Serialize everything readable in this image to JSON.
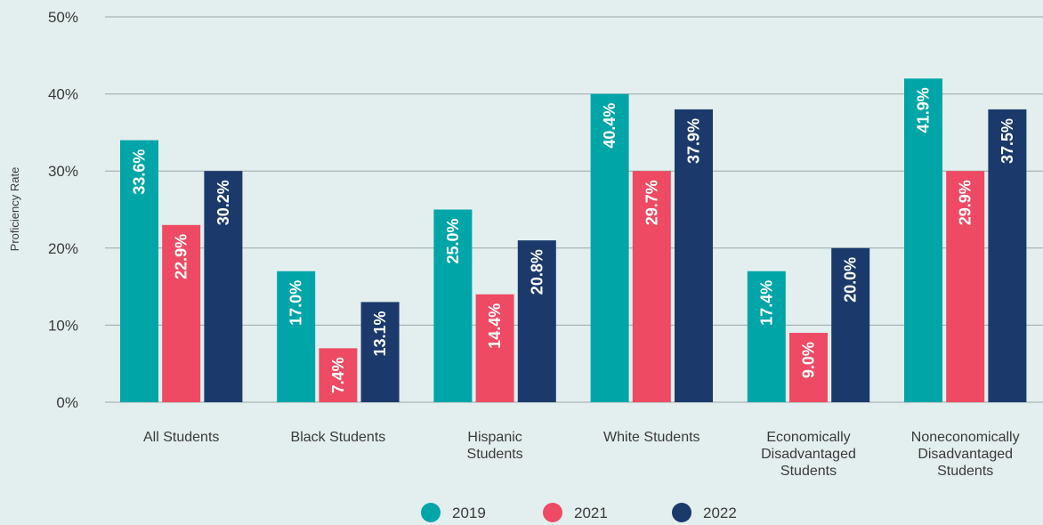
{
  "chart_data": {
    "type": "bar",
    "ylabel": "Proficiency Rate",
    "ylim": [
      0,
      50
    ],
    "yticks": [
      "0%",
      "10%",
      "20%",
      "30%",
      "40%",
      "50%"
    ],
    "grid": true,
    "legend_position": "bottom",
    "categories": [
      [
        "All Students"
      ],
      [
        "Black Students"
      ],
      [
        "Hispanic",
        "Students"
      ],
      [
        "White Students"
      ],
      [
        "Economically",
        "Disadvantaged",
        "Students"
      ],
      [
        "Noneconomically",
        "Disadvantaged",
        "Students"
      ]
    ],
    "series": [
      {
        "name": "2019",
        "color": "#00a5a8",
        "values": [
          34,
          17,
          25,
          40,
          17,
          42
        ],
        "labels": [
          "33.6%",
          "17.0%",
          "25.0%",
          "40.4%",
          "17.4%",
          "41.9%"
        ]
      },
      {
        "name": "2021",
        "color": "#ee4a63",
        "values": [
          23,
          7,
          14,
          30,
          9,
          30
        ],
        "labels": [
          "22.9%",
          "7.4%",
          "14.4%",
          "29.7%",
          "9.0%",
          "29.9%"
        ]
      },
      {
        "name": "2022",
        "color": "#1b3a6b",
        "values": [
          30,
          13,
          21,
          38,
          20,
          38
        ],
        "labels": [
          "30.2%",
          "13.1%",
          "20.8%",
          "37.9%",
          "20.0%",
          "37.5%"
        ]
      }
    ]
  }
}
